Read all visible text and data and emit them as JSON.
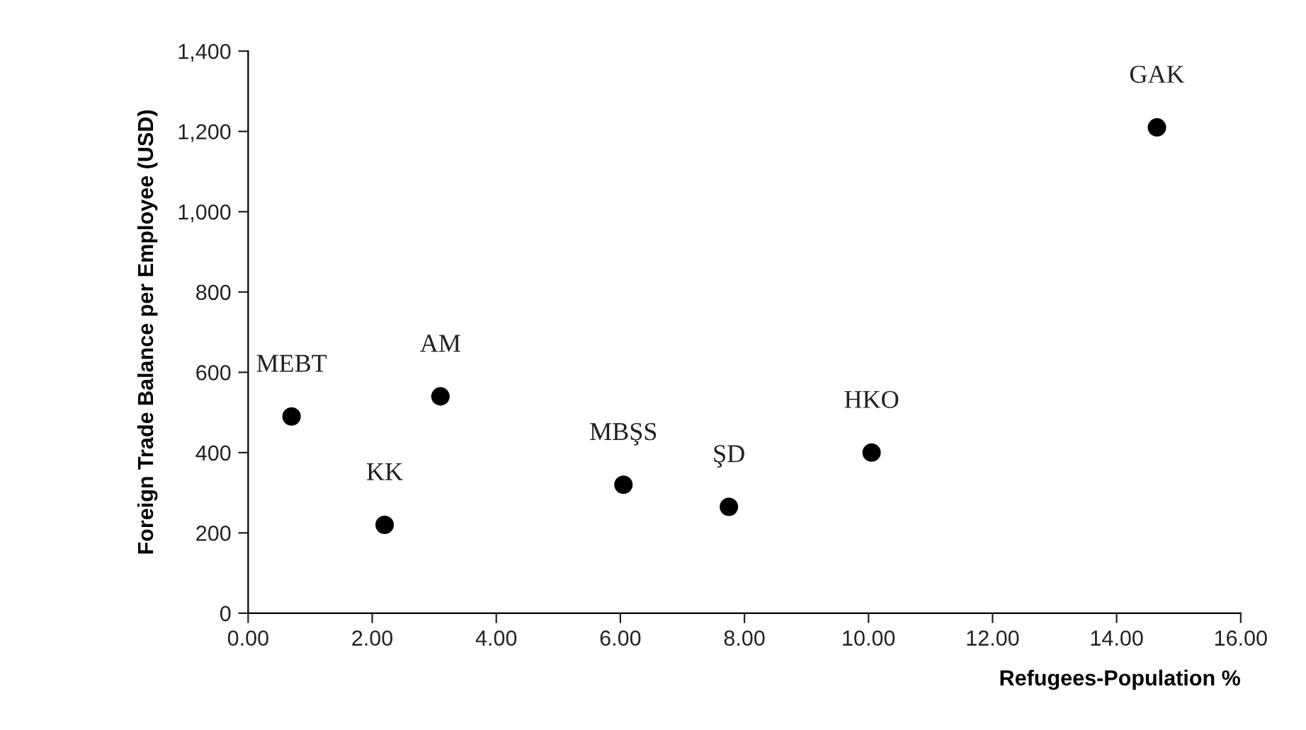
{
  "chart_data": {
    "type": "scatter",
    "xlabel": "Refugees-Population %",
    "ylabel": "Foreign Trade Balance per Employee (USD)",
    "x": [
      0.7,
      2.2,
      3.1,
      6.05,
      7.75,
      10.05,
      14.65
    ],
    "series": [
      {
        "color": "#000000",
        "values": [
          490,
          220,
          540,
          320,
          265,
          400,
          1210
        ]
      }
    ],
    "marker": "circle",
    "grid": false,
    "xlim": [
      0,
      16
    ],
    "ylim": [
      0,
      1400
    ],
    "xticks": [
      {
        "value": 0,
        "label": "0.00"
      },
      {
        "value": 2,
        "label": "2.00"
      },
      {
        "value": 4,
        "label": "4.00"
      },
      {
        "value": 6,
        "label": "6.00"
      },
      {
        "value": 8,
        "label": "8.00"
      },
      {
        "value": 10,
        "label": "10.00"
      },
      {
        "value": 12,
        "label": "12.00"
      },
      {
        "value": 14,
        "label": "14.00"
      },
      {
        "value": 16,
        "label": "16.00"
      }
    ],
    "yticks": [
      0,
      200,
      400,
      600,
      800,
      {
        "value": 1000,
        "label": "1,000"
      },
      {
        "value": 1200,
        "label": "1,200"
      },
      {
        "value": 1400,
        "label": "1,400"
      }
    ],
    "annotations": [
      {
        "text": "MEBT",
        "x": 0.7,
        "y": 490
      },
      {
        "text": "KK",
        "x": 2.2,
        "y": 220
      },
      {
        "text": "AM",
        "x": 3.1,
        "y": 540
      },
      {
        "text": "MBŞS",
        "x": 6.05,
        "y": 320
      },
      {
        "text": "ŞD",
        "x": 7.75,
        "y": 265
      },
      {
        "text": "HKO",
        "x": 10.05,
        "y": 400
      },
      {
        "text": "GAK",
        "x": 14.65,
        "y": 1210
      }
    ]
  }
}
